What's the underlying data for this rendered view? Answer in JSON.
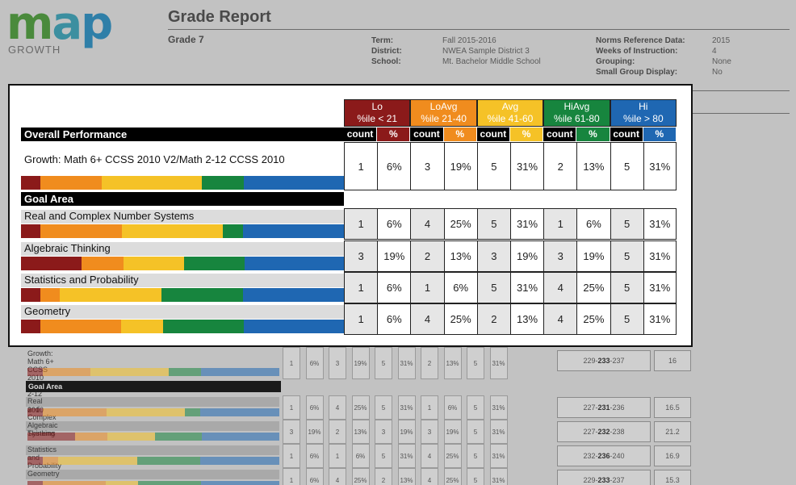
{
  "logo": {
    "word_m": "m",
    "word_a": "a",
    "word_p": "p",
    "sub": "GROWTH"
  },
  "header": {
    "title": "Grade Report",
    "grade": "Grade 7",
    "term_label": "Term:",
    "term_value": "Fall 2015-2016",
    "district_label": "District:",
    "district_value": "NWEA Sample District 3",
    "school_label": "School:",
    "school_value": "Mt. Bachelor Middle School",
    "norms_label": "Norms Reference Data:",
    "norms_value": "2015",
    "weeks_label": "Weeks of Instruction:",
    "weeks_value": "4",
    "grouping_label": "Grouping:",
    "grouping_value": "None",
    "small_group_label": "Small Group Display:",
    "small_group_value": "No"
  },
  "colors": {
    "lo": "#8b1a1a",
    "loavg": "#f08c1e",
    "avg": "#f5c227",
    "hiavg": "#17853e",
    "hi": "#1f67b2"
  },
  "bands": [
    {
      "name": "Lo",
      "range": "%ile < 21"
    },
    {
      "name": "LoAvg",
      "range": "%ile 21-40"
    },
    {
      "name": "Avg",
      "range": "%ile 41-60"
    },
    {
      "name": "HiAvg",
      "range": "%ile 61-80"
    },
    {
      "name": "Hi",
      "range": "%ile > 80"
    }
  ],
  "subheads": {
    "count": "count",
    "pct": "%"
  },
  "overall": {
    "section_title": "Overall Performance",
    "name": "Growth: Math 6+ CCSS 2010 V2/Math 2-12 CCSS 2010",
    "values": [
      "1",
      "6%",
      "3",
      "19%",
      "5",
      "31%",
      "2",
      "13%",
      "5",
      "31%"
    ],
    "stripe": [
      0.06,
      0.19,
      0.31,
      0.13,
      0.31
    ]
  },
  "goal_section_title": "Goal Area",
  "goals": [
    {
      "name": "Real and Complex Number Systems",
      "values": [
        "1",
        "6%",
        "4",
        "25%",
        "5",
        "31%",
        "1",
        "6%",
        "5",
        "31%"
      ],
      "stripe": [
        0.06,
        0.25,
        0.31,
        0.06,
        0.31
      ]
    },
    {
      "name": "Algebraic Thinking",
      "values": [
        "3",
        "19%",
        "2",
        "13%",
        "3",
        "19%",
        "3",
        "19%",
        "5",
        "31%"
      ],
      "stripe": [
        0.19,
        0.13,
        0.19,
        0.19,
        0.31
      ]
    },
    {
      "name": "Statistics and Probability",
      "values": [
        "1",
        "6%",
        "1",
        "6%",
        "5",
        "31%",
        "4",
        "25%",
        "5",
        "31%"
      ],
      "stripe": [
        0.06,
        0.06,
        0.31,
        0.25,
        0.31
      ]
    },
    {
      "name": "Geometry",
      "values": [
        "1",
        "6%",
        "4",
        "25%",
        "2",
        "13%",
        "4",
        "25%",
        "5",
        "31%"
      ],
      "stripe": [
        0.06,
        0.25,
        0.13,
        0.25,
        0.31
      ]
    }
  ],
  "background_table": {
    "overall_name": "Growth: Math 6+ CCSS 2010 V2/Math 2-12 CCSS 2010",
    "goal_title": "Goal Area",
    "rows": [
      {
        "name": "Growth: Math 6+ CCSS 2010 V2/Math 2-12 CCSS 2010",
        "rit_lo": "229-",
        "rit_mid": "233",
        "rit_hi": "-237",
        "std": "16"
      },
      {
        "name": "Real and Complex Number Systems",
        "rit_lo": "227-",
        "rit_mid": "231",
        "rit_hi": "-236",
        "std": "16.5"
      },
      {
        "name": "Algebraic Thinking",
        "rit_lo": "227-",
        "rit_mid": "232",
        "rit_hi": "-238",
        "std": "21.2"
      },
      {
        "name": "Statistics and Probability",
        "rit_lo": "232-",
        "rit_mid": "236",
        "rit_hi": "-240",
        "std": "16.9"
      },
      {
        "name": "Geometry",
        "rit_lo": "229-",
        "rit_mid": "233",
        "rit_hi": "-237",
        "std": "15.3"
      }
    ]
  }
}
